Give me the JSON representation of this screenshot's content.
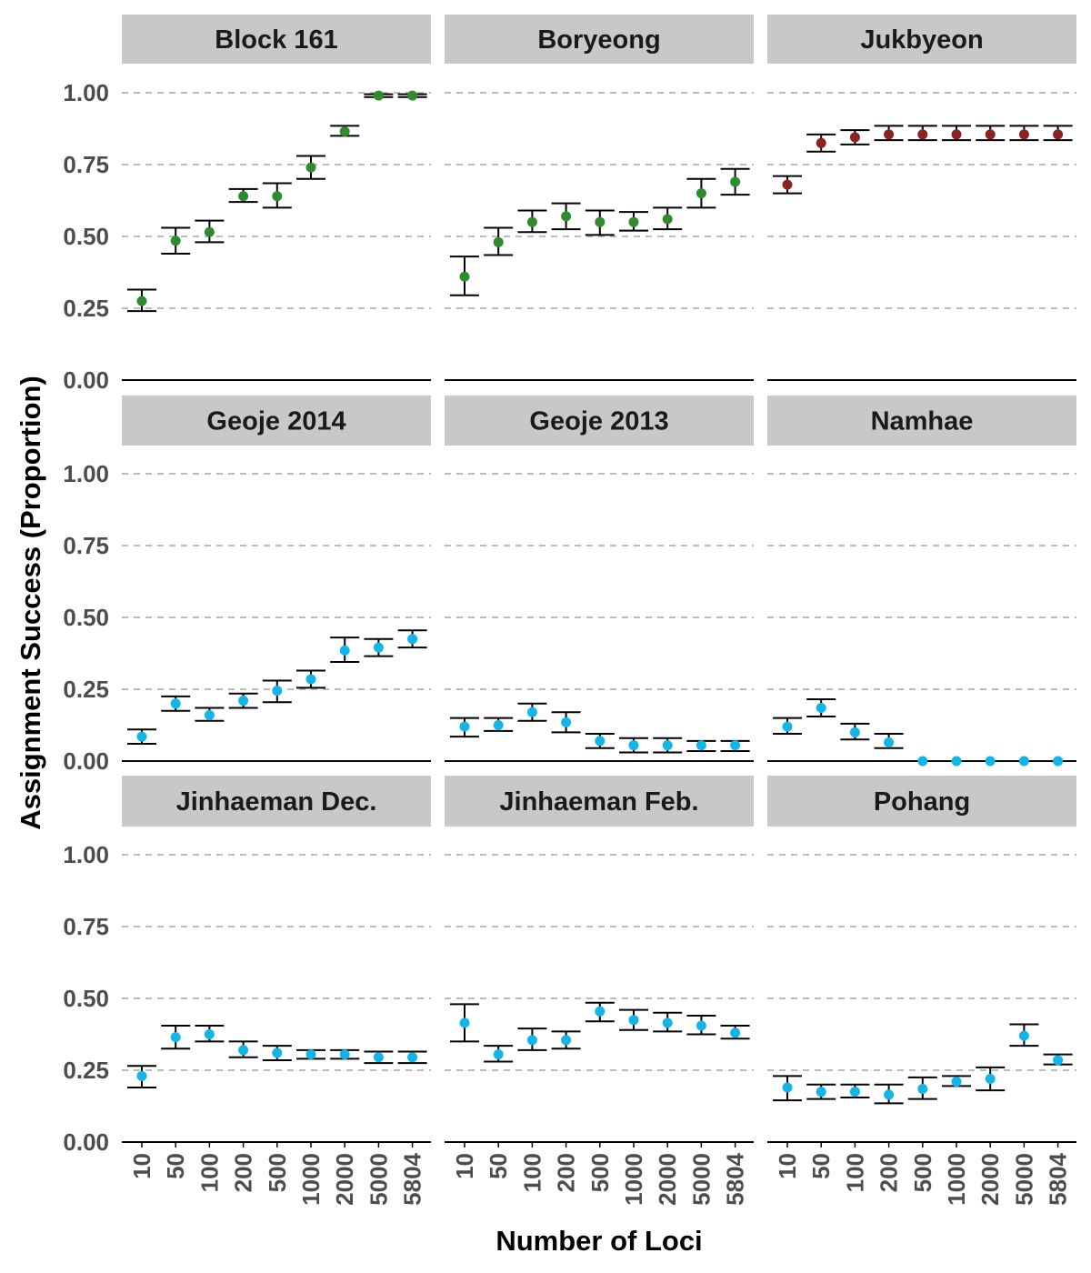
{
  "chart_data": {
    "type": "scatter",
    "xlabel": "Number of Loci",
    "ylabel": "Assignment Success (Proportion)",
    "categories": [
      "10",
      "50",
      "100",
      "200",
      "500",
      "1000",
      "2000",
      "5000",
      "5804"
    ],
    "ylim": [
      0,
      1
    ],
    "yticks": [
      "0.00",
      "0.25",
      "0.50",
      "0.75",
      "1.00"
    ],
    "grid": "horizontal dashed",
    "colors": {
      "green": "#2e8b2e",
      "red": "#8b2323",
      "blue": "#12b5e8"
    },
    "facets": [
      {
        "name": "Block 161",
        "color": "green",
        "values": [
          0.275,
          0.485,
          0.515,
          0.64,
          0.64,
          0.74,
          0.865,
          0.99,
          0.99
        ],
        "lower": [
          0.24,
          0.44,
          0.48,
          0.62,
          0.6,
          0.7,
          0.85,
          0.985,
          0.985
        ],
        "upper": [
          0.315,
          0.53,
          0.555,
          0.665,
          0.685,
          0.78,
          0.885,
          0.995,
          0.995
        ]
      },
      {
        "name": "Boryeong",
        "color": "green",
        "values": [
          0.36,
          0.48,
          0.55,
          0.57,
          0.55,
          0.55,
          0.56,
          0.65,
          0.69
        ],
        "lower": [
          0.295,
          0.435,
          0.515,
          0.525,
          0.505,
          0.52,
          0.525,
          0.6,
          0.645
        ],
        "upper": [
          0.43,
          0.53,
          0.59,
          0.615,
          0.59,
          0.585,
          0.6,
          0.7,
          0.735
        ]
      },
      {
        "name": "Jukbyeon",
        "color": "red",
        "values": [
          0.68,
          0.825,
          0.845,
          0.855,
          0.855,
          0.855,
          0.855,
          0.855,
          0.855
        ],
        "lower": [
          0.65,
          0.795,
          0.82,
          0.835,
          0.835,
          0.835,
          0.835,
          0.835,
          0.835
        ],
        "upper": [
          0.71,
          0.855,
          0.87,
          0.885,
          0.885,
          0.885,
          0.885,
          0.885,
          0.885
        ]
      },
      {
        "name": "Geoje 2014",
        "color": "blue",
        "values": [
          0.085,
          0.2,
          0.16,
          0.21,
          0.245,
          0.285,
          0.385,
          0.395,
          0.425
        ],
        "lower": [
          0.06,
          0.175,
          0.14,
          0.185,
          0.205,
          0.255,
          0.345,
          0.365,
          0.395
        ],
        "upper": [
          0.11,
          0.225,
          0.185,
          0.235,
          0.28,
          0.315,
          0.43,
          0.425,
          0.455
        ]
      },
      {
        "name": "Geoje 2013",
        "color": "blue",
        "values": [
          0.12,
          0.125,
          0.17,
          0.135,
          0.07,
          0.055,
          0.055,
          0.055,
          0.055
        ],
        "lower": [
          0.085,
          0.105,
          0.14,
          0.1,
          0.045,
          0.03,
          0.03,
          0.035,
          0.035
        ],
        "upper": [
          0.15,
          0.15,
          0.2,
          0.17,
          0.095,
          0.08,
          0.08,
          0.07,
          0.07
        ]
      },
      {
        "name": "Namhae",
        "color": "blue",
        "values": [
          0.12,
          0.185,
          0.1,
          0.065,
          0.0,
          0.0,
          0.0,
          0.0,
          0.0
        ],
        "lower": [
          0.095,
          0.155,
          0.075,
          0.045,
          0.0,
          0.0,
          0.0,
          0.0,
          0.0
        ],
        "upper": [
          0.15,
          0.215,
          0.13,
          0.095,
          0.0,
          0.0,
          0.0,
          0.0,
          0.0
        ]
      },
      {
        "name": "Jinhaeman Dec.",
        "color": "blue",
        "values": [
          0.23,
          0.365,
          0.375,
          0.32,
          0.31,
          0.305,
          0.305,
          0.295,
          0.295
        ],
        "lower": [
          0.19,
          0.325,
          0.35,
          0.295,
          0.285,
          0.29,
          0.29,
          0.275,
          0.275
        ],
        "upper": [
          0.265,
          0.405,
          0.405,
          0.35,
          0.335,
          0.32,
          0.32,
          0.315,
          0.315
        ]
      },
      {
        "name": "Jinhaeman Feb.",
        "color": "blue",
        "values": [
          0.415,
          0.305,
          0.355,
          0.355,
          0.455,
          0.425,
          0.415,
          0.405,
          0.38
        ],
        "lower": [
          0.35,
          0.28,
          0.32,
          0.325,
          0.42,
          0.39,
          0.385,
          0.375,
          0.36
        ],
        "upper": [
          0.48,
          0.335,
          0.395,
          0.385,
          0.485,
          0.46,
          0.45,
          0.44,
          0.405
        ]
      },
      {
        "name": "Pohang",
        "color": "blue",
        "values": [
          0.19,
          0.175,
          0.175,
          0.165,
          0.185,
          0.21,
          0.22,
          0.37,
          0.285
        ],
        "lower": [
          0.145,
          0.15,
          0.155,
          0.135,
          0.15,
          0.195,
          0.18,
          0.335,
          0.27
        ],
        "upper": [
          0.23,
          0.2,
          0.2,
          0.2,
          0.225,
          0.23,
          0.26,
          0.41,
          0.305
        ]
      }
    ]
  }
}
